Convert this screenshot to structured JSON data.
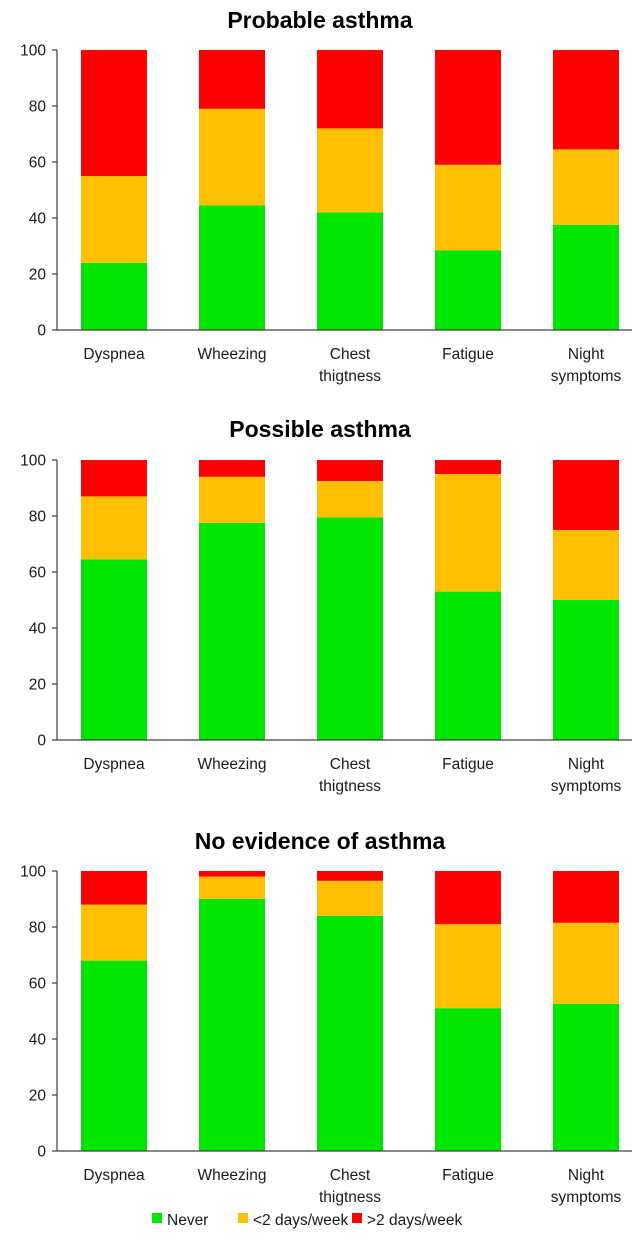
{
  "chart_data": [
    {
      "type": "bar",
      "stacked": true,
      "title": "Probable asthma",
      "categories": [
        [
          "Dyspnea"
        ],
        [
          "Wheezing"
        ],
        [
          "Chest",
          "thigtness"
        ],
        [
          "Fatigue"
        ],
        [
          "Night",
          "symptoms"
        ]
      ],
      "series": [
        {
          "name": "Never",
          "values": [
            24,
            44.5,
            42,
            28.5,
            37.5
          ]
        },
        {
          "name": "<2 days/week",
          "values": [
            31,
            34.5,
            30,
            30.5,
            27
          ]
        },
        {
          "name": ">2 days/week",
          "values": [
            45,
            21,
            28,
            41,
            35.5
          ]
        }
      ],
      "ylim": [
        0,
        100
      ],
      "yticks": [
        0,
        20,
        40,
        60,
        80,
        100
      ]
    },
    {
      "type": "bar",
      "stacked": true,
      "title": "Possible asthma",
      "categories": [
        [
          "Dyspnea"
        ],
        [
          "Wheezing"
        ],
        [
          "Chest",
          "thigtness"
        ],
        [
          "Fatigue"
        ],
        [
          "Night",
          "symptoms"
        ]
      ],
      "series": [
        {
          "name": "Never",
          "values": [
            64.5,
            77.5,
            79.5,
            53,
            50
          ]
        },
        {
          "name": "<2 days/week",
          "values": [
            22.5,
            16.5,
            13,
            42,
            25
          ]
        },
        {
          "name": ">2 days/week",
          "values": [
            13,
            6,
            7.5,
            5,
            25
          ]
        }
      ],
      "ylim": [
        0,
        100
      ],
      "yticks": [
        0,
        20,
        40,
        60,
        80,
        100
      ]
    },
    {
      "type": "bar",
      "stacked": true,
      "title": "No evidence of asthma",
      "categories": [
        [
          "Dyspnea"
        ],
        [
          "Wheezing"
        ],
        [
          "Chest",
          "thigtness"
        ],
        [
          "Fatigue"
        ],
        [
          "Night",
          "symptoms"
        ]
      ],
      "series": [
        {
          "name": "Never",
          "values": [
            68,
            90,
            84,
            51,
            52.5
          ]
        },
        {
          "name": "<2 days/week",
          "values": [
            20,
            8,
            12.5,
            30,
            29
          ]
        },
        {
          "name": ">2 days/week",
          "values": [
            12,
            2,
            3.5,
            19,
            18.5
          ]
        }
      ],
      "ylim": [
        0,
        100
      ],
      "yticks": [
        0,
        20,
        40,
        60,
        80,
        100
      ]
    }
  ],
  "legend": {
    "placement": "bottom",
    "items": [
      {
        "label": "Never",
        "color": "#00e600"
      },
      {
        "label": "<2 days/week",
        "color": "#ffc000"
      },
      {
        "label": ">2 days/week",
        "color": "#ff0000"
      }
    ]
  },
  "colors": {
    "never": "#00e600",
    "lt2": "#ffc000",
    "gt2": "#ff0000",
    "axis": "#404040",
    "text": "#1a1a1a"
  }
}
